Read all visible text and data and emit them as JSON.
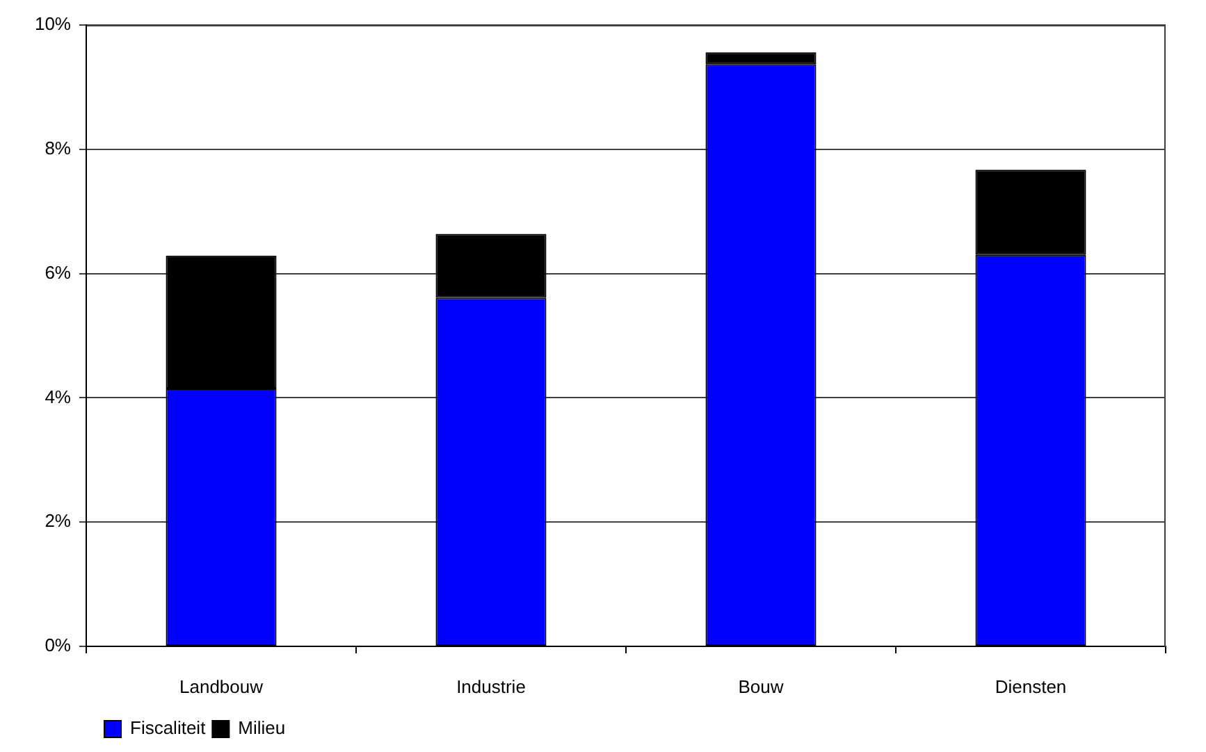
{
  "chart_data": {
    "type": "bar",
    "stacked": true,
    "categories": [
      "Landbouw",
      "Industrie",
      "Bouw",
      "Diensten"
    ],
    "series": [
      {
        "name": "Fiscaliteit",
        "color": "#0000ff",
        "values": [
          4.15,
          5.61,
          9.37,
          6.3
        ]
      },
      {
        "name": "Milieu",
        "color": "#000000",
        "values": [
          2.14,
          1.03,
          0.19,
          1.37
        ]
      }
    ],
    "ylim": [
      0,
      10
    ],
    "yticks": [
      {
        "value": 0,
        "label": "0%"
      },
      {
        "value": 2,
        "label": "2%"
      },
      {
        "value": 4,
        "label": "4%"
      },
      {
        "value": 6,
        "label": "6%"
      },
      {
        "value": 8,
        "label": "8%"
      },
      {
        "value": 10,
        "label": "10%"
      }
    ],
    "grid": "y",
    "legend": "bottom left"
  }
}
